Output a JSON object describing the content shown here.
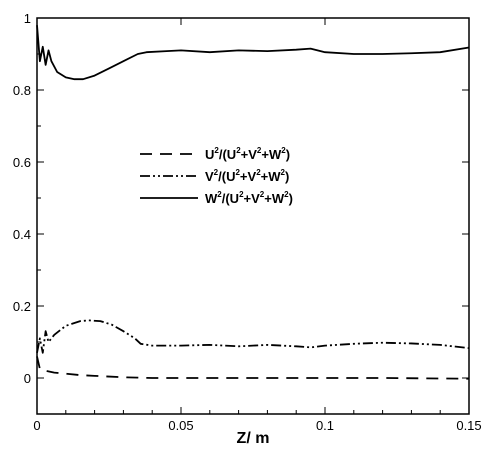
{
  "chart_data": {
    "type": "line",
    "xlabel": "Z/ m",
    "ylabel": "",
    "xlim": [
      0,
      0.15
    ],
    "ylim": [
      -0.1,
      1.0
    ],
    "xticks": [
      0,
      0.05,
      0.1,
      0.15
    ],
    "xtick_labels": [
      "0",
      "0.05",
      "0.1",
      "0.15"
    ],
    "yticks": [
      0,
      0.2,
      0.4,
      0.6,
      0.8,
      1.0
    ],
    "ytick_labels": [
      "0",
      "0.2",
      "0.4",
      "0.6",
      "0.8",
      "1"
    ],
    "grid": false,
    "legend_position": "center",
    "series": [
      {
        "name": "U²/(U²+V²+W²)",
        "legend_main": "U",
        "legend_parts": [
          "U",
          "2",
          "/(U",
          "2",
          "+V",
          "2",
          "+W",
          "2",
          ")"
        ],
        "line_style": "dashed",
        "color": "#000000",
        "x": [
          0,
          0.001,
          0.003,
          0.006,
          0.01,
          0.015,
          0.02,
          0.025,
          0.03,
          0.035,
          0.04,
          0.06,
          0.08,
          0.1,
          0.12,
          0.15
        ],
        "y": [
          0.06,
          0.025,
          0.02,
          0.015,
          0.012,
          0.008,
          0.006,
          0.004,
          0.002,
          0.001,
          0.0,
          0.0,
          0.0,
          0.0,
          0.0,
          -0.002
        ]
      },
      {
        "name": "V²/(U²+V²+W²)",
        "legend_parts": [
          "V",
          "2",
          "/(U",
          "2",
          "+V",
          "2",
          "+W",
          "2",
          ")"
        ],
        "line_style": "dash-dot-dot",
        "color": "#000000",
        "x": [
          0,
          0.001,
          0.002,
          0.003,
          0.004,
          0.006,
          0.01,
          0.015,
          0.018,
          0.022,
          0.026,
          0.03,
          0.034,
          0.036,
          0.04,
          0.05,
          0.06,
          0.07,
          0.08,
          0.09,
          0.095,
          0.1,
          0.11,
          0.12,
          0.13,
          0.14,
          0.15
        ],
        "y": [
          0.07,
          0.11,
          0.07,
          0.13,
          0.1,
          0.12,
          0.145,
          0.158,
          0.16,
          0.158,
          0.148,
          0.13,
          0.11,
          0.095,
          0.09,
          0.09,
          0.092,
          0.088,
          0.092,
          0.088,
          0.085,
          0.09,
          0.095,
          0.098,
          0.096,
          0.092,
          0.083
        ]
      },
      {
        "name": "W²/(U²+V²+W²)",
        "legend_parts": [
          "W",
          "2",
          "/(U",
          "2",
          "+V",
          "2",
          "+W",
          "2",
          ")"
        ],
        "line_style": "solid",
        "color": "#000000",
        "x": [
          0,
          0.001,
          0.002,
          0.003,
          0.004,
          0.005,
          0.007,
          0.01,
          0.013,
          0.016,
          0.02,
          0.025,
          0.03,
          0.035,
          0.038,
          0.045,
          0.05,
          0.06,
          0.07,
          0.08,
          0.09,
          0.095,
          0.1,
          0.11,
          0.12,
          0.13,
          0.14,
          0.15
        ],
        "y": [
          0.98,
          0.88,
          0.92,
          0.87,
          0.91,
          0.88,
          0.85,
          0.835,
          0.83,
          0.83,
          0.84,
          0.86,
          0.88,
          0.9,
          0.905,
          0.908,
          0.91,
          0.905,
          0.91,
          0.908,
          0.912,
          0.915,
          0.905,
          0.9,
          0.9,
          0.902,
          0.905,
          0.918
        ]
      }
    ]
  }
}
